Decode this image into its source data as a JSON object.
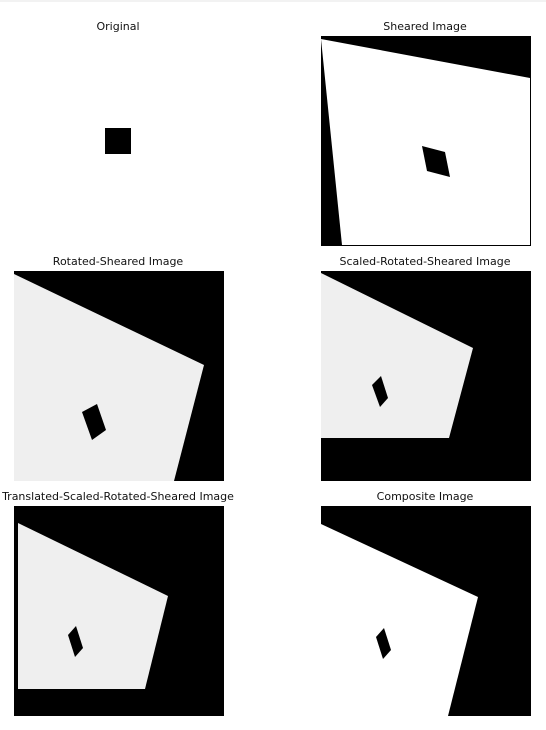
{
  "figure": {
    "panels": [
      {
        "id": "original",
        "title": "Original"
      },
      {
        "id": "sheared",
        "title": "Sheared Image"
      },
      {
        "id": "rotated-sheared",
        "title": "Rotated-Sheared Image"
      },
      {
        "id": "scaled-rotated-sheared",
        "title": "Scaled-Rotated-Sheared Image"
      },
      {
        "id": "translated-scaled-rotated-sheared",
        "title": "Translated-Scaled-Rotated-Sheared Image"
      },
      {
        "id": "composite",
        "title": "Composite Image"
      }
    ],
    "colors": {
      "background": "#000000",
      "foreground": "#ffffff",
      "grainy_foreground": "#efefef",
      "square": "#000000"
    }
  }
}
